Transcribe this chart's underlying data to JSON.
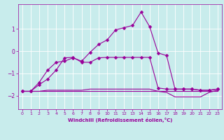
{
  "xlabel": "Windchill (Refroidissement éolien,°C)",
  "bg_color": "#c8ecec",
  "grid_color": "#ffffff",
  "line_color": "#990099",
  "xlim": [
    -0.5,
    23.5
  ],
  "ylim": [
    -2.6,
    2.1
  ],
  "yticks": [
    -2,
    -1,
    0,
    1
  ],
  "xticks": [
    0,
    1,
    2,
    3,
    4,
    5,
    6,
    7,
    8,
    9,
    10,
    11,
    12,
    13,
    14,
    15,
    16,
    17,
    18,
    19,
    20,
    21,
    22,
    23
  ],
  "series": [
    {
      "x": [
        0,
        1,
        2,
        3,
        4,
        5,
        6,
        7,
        8,
        9,
        10,
        11,
        12,
        13,
        14,
        15,
        16,
        17,
        18,
        19,
        20,
        21,
        22,
        23
      ],
      "y": [
        -1.8,
        -1.8,
        -1.4,
        -0.85,
        -0.5,
        -0.45,
        -0.3,
        -0.45,
        -0.05,
        0.3,
        0.5,
        0.95,
        1.05,
        1.15,
        1.75,
        1.1,
        -0.08,
        -0.2,
        -1.7,
        -1.7,
        -1.7,
        -1.75,
        -1.75,
        -1.7
      ],
      "marker": "D",
      "marker_size": 2.5,
      "lw": 0.8
    },
    {
      "x": [
        0,
        1,
        2,
        3,
        4,
        5,
        6,
        7,
        8,
        9,
        10,
        11,
        12,
        13,
        14,
        15,
        16,
        17,
        18,
        19,
        20,
        21,
        22,
        23
      ],
      "y": [
        -1.8,
        -1.8,
        -1.5,
        -1.25,
        -0.85,
        -0.3,
        -0.28,
        -0.5,
        -0.5,
        -0.3,
        -0.28,
        -0.28,
        -0.28,
        -0.28,
        -0.28,
        -0.28,
        -1.65,
        -1.7,
        -1.7,
        -1.7,
        -1.7,
        -1.75,
        -1.75,
        -1.7
      ],
      "marker": "D",
      "marker_size": 2.5,
      "lw": 0.8
    },
    {
      "x": [
        0,
        1,
        2,
        3,
        4,
        5,
        6,
        7,
        8,
        9,
        10,
        11,
        12,
        13,
        14,
        15,
        16,
        17,
        18,
        19,
        20,
        21,
        22,
        23
      ],
      "y": [
        -1.8,
        -1.8,
        -1.8,
        -1.75,
        -1.75,
        -1.75,
        -1.75,
        -1.75,
        -1.7,
        -1.7,
        -1.7,
        -1.7,
        -1.7,
        -1.7,
        -1.7,
        -1.7,
        -1.8,
        -1.85,
        -2.05,
        -2.05,
        -2.05,
        -2.05,
        -1.85,
        -1.75
      ],
      "marker": null,
      "marker_size": 0,
      "lw": 0.8
    },
    {
      "x": [
        0,
        1,
        2,
        3,
        4,
        5,
        6,
        7,
        8,
        9,
        10,
        11,
        12,
        13,
        14,
        15,
        16,
        17,
        18,
        19,
        20,
        21,
        22,
        23
      ],
      "y": [
        -1.8,
        -1.8,
        -1.8,
        -1.8,
        -1.8,
        -1.8,
        -1.8,
        -1.8,
        -1.8,
        -1.8,
        -1.8,
        -1.8,
        -1.8,
        -1.8,
        -1.8,
        -1.8,
        -1.8,
        -1.8,
        -1.8,
        -1.8,
        -1.8,
        -1.8,
        -1.8,
        -1.8
      ],
      "marker": null,
      "marker_size": 0,
      "lw": 0.8
    }
  ]
}
